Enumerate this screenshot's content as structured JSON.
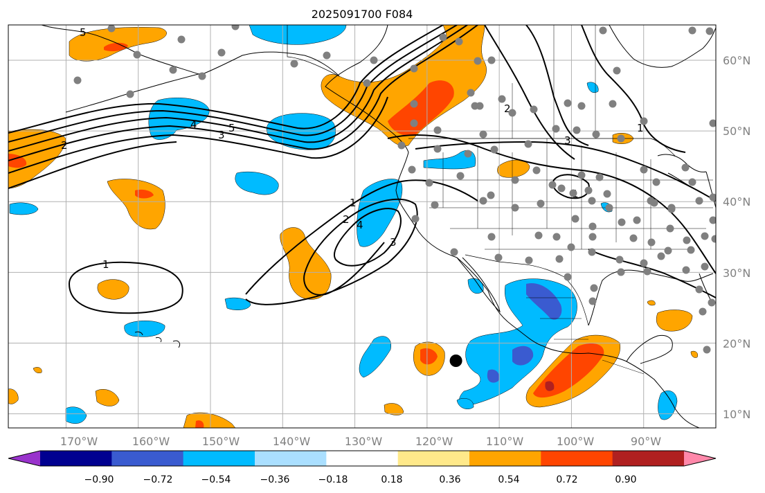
{
  "title": "2025091700 F084",
  "map": {
    "extent": {
      "lon_min": -178,
      "lon_max": -80,
      "lat_min": 8,
      "lat_max": 65
    },
    "lat_gridlines": [
      10,
      20,
      30,
      40,
      50,
      60
    ],
    "lon_gridlines": [
      -170,
      -160,
      -150,
      -140,
      -130,
      -120,
      -110,
      -100,
      -90
    ],
    "lat_labels": [
      "10°N",
      "20°N",
      "30°N",
      "40°N",
      "50°N",
      "60°N"
    ],
    "lon_labels": [
      "170°W",
      "160°W",
      "150°W",
      "140°W",
      "130°W",
      "120°W",
      "110°W",
      "100°W",
      "90°W"
    ],
    "contour_labels": [
      "1",
      "2",
      "3",
      "4",
      "5"
    ],
    "marked_location": {
      "lon": -116,
      "lat": 17.5
    }
  },
  "colorbar": {
    "ticks": [
      "−0.90",
      "−0.72",
      "−0.54",
      "−0.36",
      "−0.18",
      "0.18",
      "0.36",
      "0.54",
      "0.72",
      "0.90"
    ],
    "colors": [
      "#9933cc",
      "#000090",
      "#3a5bd0",
      "#00bbff",
      "#aadfff",
      "#ffffff",
      "#ffe98a",
      "#ffa500",
      "#ff4500",
      "#b02020",
      "#ff88aa"
    ]
  },
  "colors": {
    "grid": "#b0b0b0",
    "blue_mid": "#00bbff",
    "blue_dark": "#3a5bd0",
    "orange": "#ffa500",
    "red_orange": "#ff4500",
    "dark_red": "#b02020",
    "station": "#808080"
  }
}
